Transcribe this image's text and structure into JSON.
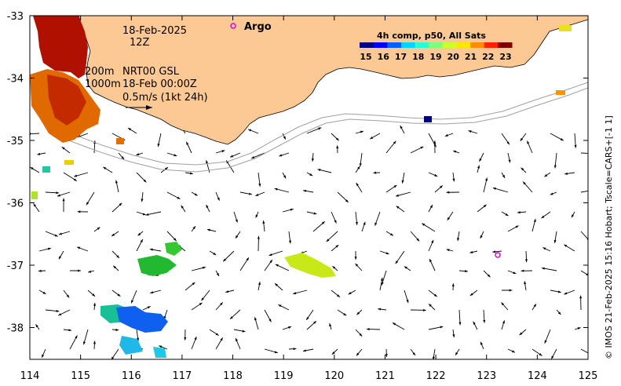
{
  "map": {
    "date_line": "18-Feb-2025",
    "hour_line": "12Z",
    "contour_line_1": "200m",
    "contour_line_2": "1000m",
    "product_line": "NRT00 GSL",
    "product_date": "18-Feb 00:00Z",
    "scale_label": "0.5m/s (1kt 24h)",
    "argo_label": "Argo",
    "colorbar_title": "4h comp, p50, All Sats",
    "colorbar_ticks": [
      "15",
      "16",
      "17",
      "18",
      "19",
      "20",
      "21",
      "22",
      "23"
    ],
    "colorbar_colors": [
      "#00007f",
      "#0000ff",
      "#0063ff",
      "#00d4ff",
      "#29ffce",
      "#7dff7a",
      "#ceff29",
      "#ffe600",
      "#ff8c00",
      "#ff2000",
      "#7f0000"
    ],
    "land_color": "#fcc995",
    "credit": "© IMOS 21-Feb-2025 15:16 Hobart; Tscale=CARS+[-1 1]",
    "x_ticks": [
      "114",
      "115",
      "116",
      "117",
      "118",
      "119",
      "120",
      "121",
      "122",
      "123",
      "124",
      "125"
    ],
    "y_ticks": [
      "-33",
      "-34",
      "-35",
      "-36",
      "-37",
      "-38"
    ]
  }
}
